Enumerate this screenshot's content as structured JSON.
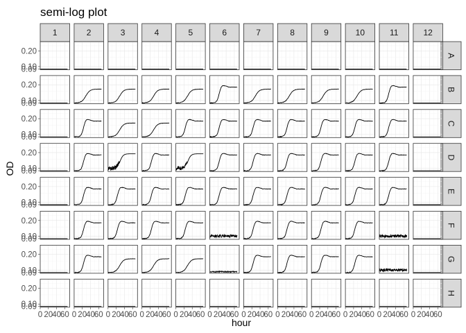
{
  "chart_data": {
    "type": "line",
    "title": "semi-log plot",
    "xlabel": "hour",
    "ylabel": "OD",
    "y_scale": "log",
    "xlim": [
      0,
      72
    ],
    "ylim": [
      0.087,
      0.3
    ],
    "x_ticks": [
      0,
      20,
      40,
      60
    ],
    "x_tick_labels": [
      "0",
      "20",
      "40",
      "60"
    ],
    "y_ticks": [
      0.09,
      0.1,
      0.2
    ],
    "y_tick_labels": [
      "0.09",
      "0.10",
      "0.20"
    ],
    "columns": [
      "1",
      "2",
      "3",
      "4",
      "5",
      "6",
      "7",
      "8",
      "9",
      "10",
      "11",
      "12"
    ],
    "rows": [
      "A",
      "B",
      "C",
      "D",
      "E",
      "F",
      "G",
      "H"
    ],
    "wells": [
      [
        "flat",
        "flat",
        "flat",
        "flat",
        "flat",
        "flat",
        "flat",
        "flat",
        "flat",
        "flat",
        "flat",
        "flat"
      ],
      [
        "flat",
        "slow",
        "slow",
        "slow",
        "slow",
        "fast",
        "slow",
        "slow",
        "slow",
        "slow",
        "fast",
        "flat"
      ],
      [
        "flat",
        "fast",
        "slow",
        "slow",
        "fast",
        "fast",
        "fast",
        "fast",
        "fast",
        "fast",
        "fast",
        "flat"
      ],
      [
        "flat",
        "fast",
        "noisy",
        "fast",
        "noisy",
        "fast",
        "fast",
        "fast",
        "fast",
        "fast",
        "fast",
        "flat"
      ],
      [
        "flat",
        "fast",
        "fast",
        "fast",
        "fast",
        "fast",
        "fast",
        "fast",
        "fast",
        "fast",
        "fast",
        "flat"
      ],
      [
        "flat",
        "fast",
        "fast",
        "fast",
        "fast",
        "noise",
        "fast",
        "fast",
        "fast",
        "fast",
        "noise",
        "flat"
      ],
      [
        "flat",
        "fast",
        "slow",
        "slow",
        "slow",
        "lownoise",
        "fast",
        "fast",
        "fast",
        "fast",
        "noise",
        "flat"
      ],
      [
        "flat",
        "flat",
        "flat",
        "flat",
        "flat",
        "flat",
        "flat",
        "flat",
        "flat",
        "flat",
        "flat",
        "flat"
      ]
    ],
    "grid": true
  }
}
